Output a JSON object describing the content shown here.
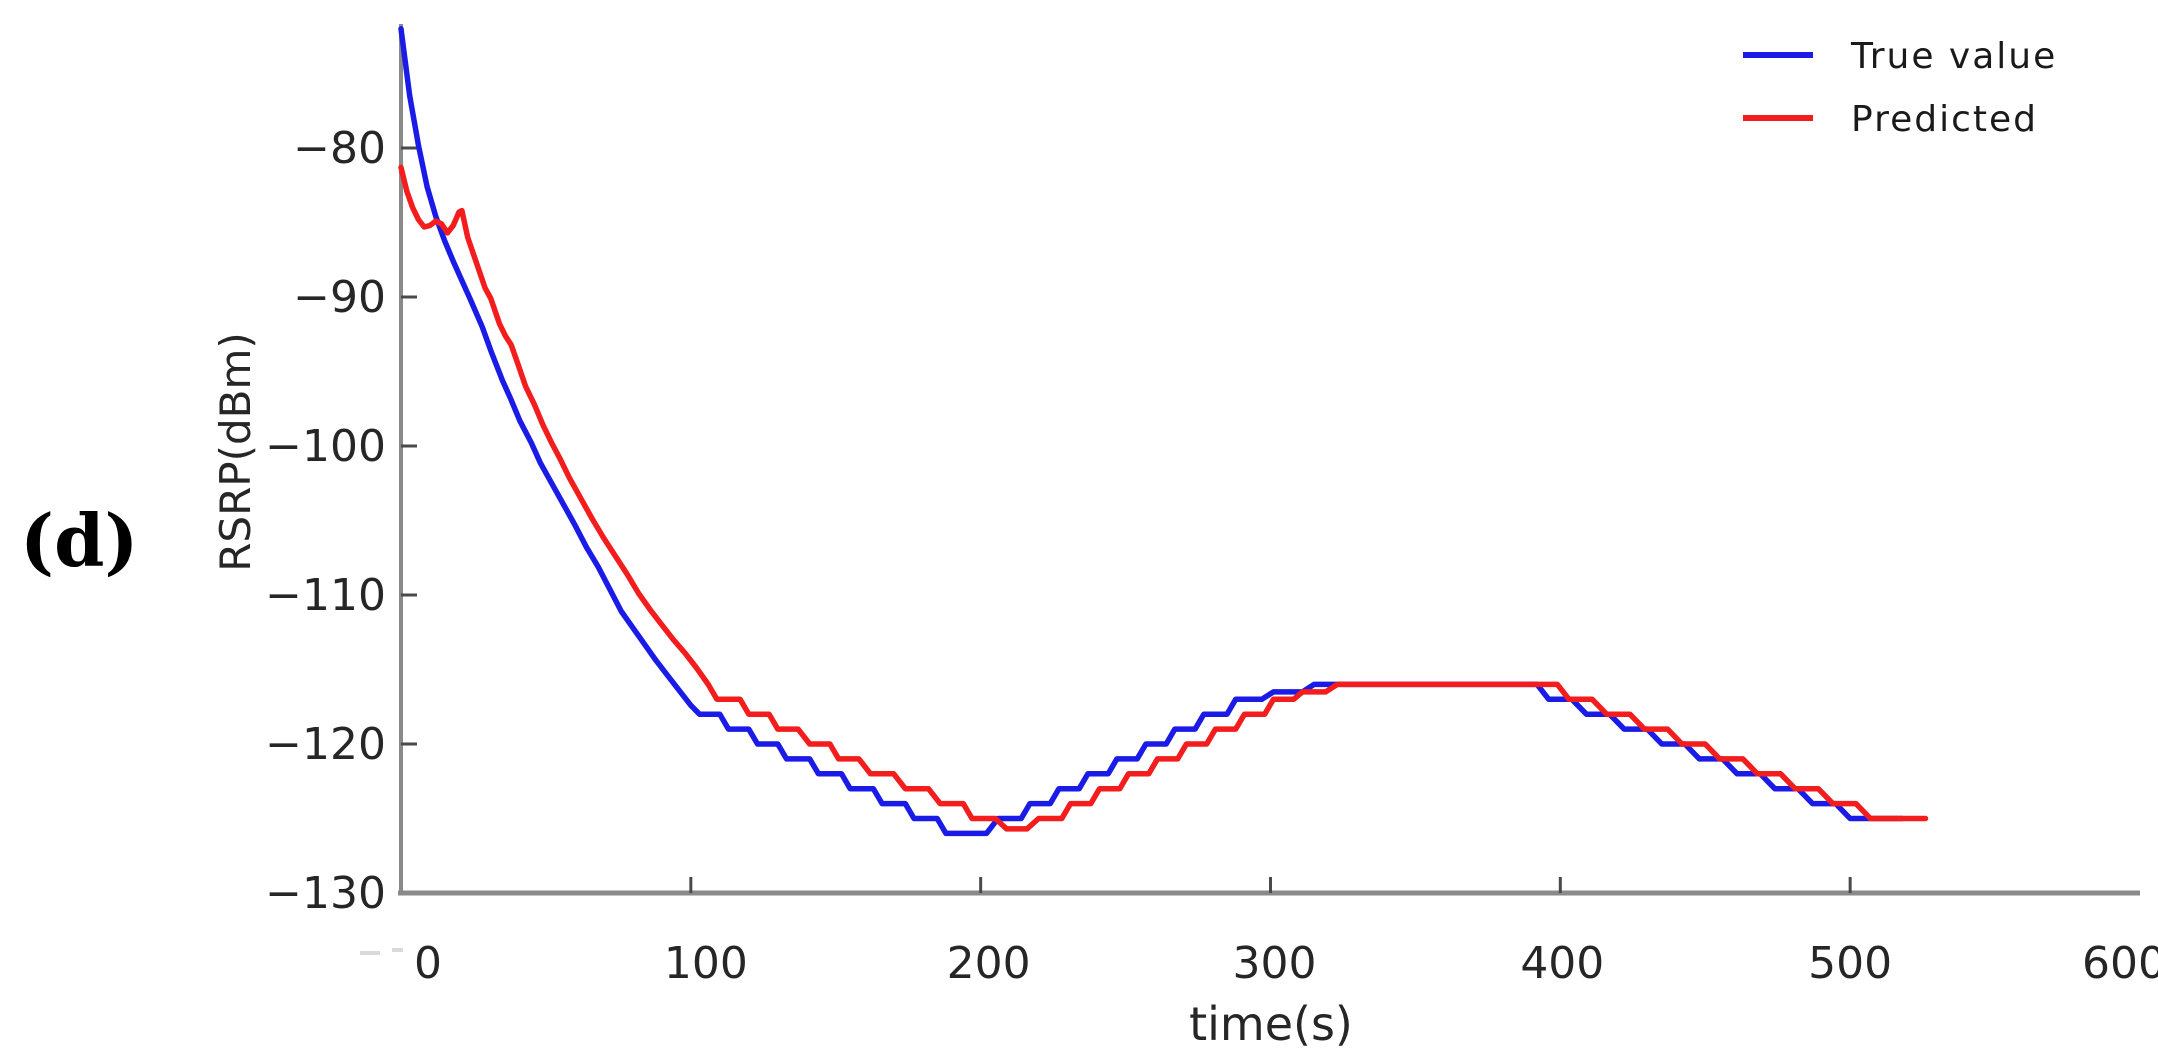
{
  "figure_label": "(d)",
  "colors": {
    "background": "#ffffff",
    "spine": "#8a8a8a",
    "tick_mark": "#4a4a4a",
    "tick_text": "#262626",
    "true_value_blue": "#1b1be8",
    "predicted_red": "#f31d1d",
    "artifact_gray": "#d9d9d9"
  },
  "chart_data": {
    "type": "line",
    "title": "",
    "xlabel": "time(s)",
    "ylabel": "RSRP(dBm)",
    "xlim": [
      0,
      600
    ],
    "ylim": [
      -130,
      -71.6
    ],
    "xticks": [
      0,
      100,
      200,
      300,
      400,
      500,
      600
    ],
    "yticks": [
      -80,
      -90,
      -100,
      -110,
      -120,
      -130
    ],
    "grid": false,
    "legend_position": "upper right",
    "legend": [
      "True value",
      "Predicted"
    ],
    "series": [
      {
        "name": "True value",
        "color": "#1b1be8",
        "points": [
          [
            0,
            -72
          ],
          [
            3,
            -76.5
          ],
          [
            6,
            -79.8
          ],
          [
            9,
            -82.6
          ],
          [
            12,
            -84.6
          ],
          [
            15,
            -86.2
          ],
          [
            18,
            -87.6
          ],
          [
            21,
            -88.9
          ],
          [
            24,
            -90.2
          ],
          [
            28,
            -92
          ],
          [
            31,
            -93.6
          ],
          [
            35,
            -95.6
          ],
          [
            38,
            -96.9
          ],
          [
            41,
            -98.3
          ],
          [
            45,
            -99.8
          ],
          [
            48,
            -101.1
          ],
          [
            52,
            -102.5
          ],
          [
            56,
            -103.9
          ],
          [
            60,
            -105.3
          ],
          [
            64,
            -106.8
          ],
          [
            68,
            -108.1
          ],
          [
            72,
            -109.6
          ],
          [
            76,
            -111.1
          ],
          [
            80,
            -112.2
          ],
          [
            84,
            -113.3
          ],
          [
            88,
            -114.4
          ],
          [
            92,
            -115.4
          ],
          [
            96,
            -116.4
          ],
          [
            100,
            -117.4
          ],
          [
            103,
            -118
          ],
          [
            110,
            -118
          ],
          [
            113,
            -119
          ],
          [
            120,
            -119
          ],
          [
            123,
            -120
          ],
          [
            130,
            -120
          ],
          [
            133,
            -121
          ],
          [
            141,
            -121
          ],
          [
            144,
            -122
          ],
          [
            152,
            -122
          ],
          [
            155,
            -123
          ],
          [
            163,
            -123
          ],
          [
            166,
            -124
          ],
          [
            174,
            -124
          ],
          [
            177,
            -125
          ],
          [
            185,
            -125
          ],
          [
            188,
            -126
          ],
          [
            202,
            -126
          ],
          [
            206,
            -125
          ],
          [
            214,
            -125
          ],
          [
            217,
            -124
          ],
          [
            224,
            -124
          ],
          [
            227,
            -123
          ],
          [
            234,
            -123
          ],
          [
            237,
            -122
          ],
          [
            244,
            -122
          ],
          [
            247,
            -121
          ],
          [
            254,
            -121
          ],
          [
            257,
            -120
          ],
          [
            264,
            -120
          ],
          [
            267,
            -119
          ],
          [
            274,
            -119
          ],
          [
            277,
            -118
          ],
          [
            285,
            -118
          ],
          [
            288,
            -117
          ],
          [
            297,
            -117
          ],
          [
            301,
            -116.5
          ],
          [
            311,
            -116.5
          ],
          [
            315,
            -116
          ],
          [
            392,
            -116
          ],
          [
            396,
            -117
          ],
          [
            404,
            -117
          ],
          [
            409,
            -118
          ],
          [
            417,
            -118
          ],
          [
            422,
            -119
          ],
          [
            430,
            -119
          ],
          [
            435,
            -120
          ],
          [
            443,
            -120
          ],
          [
            448,
            -121
          ],
          [
            456,
            -121
          ],
          [
            461,
            -122
          ],
          [
            469,
            -122
          ],
          [
            474,
            -123
          ],
          [
            482,
            -123
          ],
          [
            487,
            -124
          ],
          [
            495,
            -124
          ],
          [
            500,
            -125
          ],
          [
            518,
            -125
          ]
        ]
      },
      {
        "name": "Predicted",
        "color": "#f31d1d",
        "points": [
          [
            0,
            -81.3
          ],
          [
            2,
            -82.9
          ],
          [
            4,
            -84
          ],
          [
            6,
            -84.8
          ],
          [
            8,
            -85.3
          ],
          [
            10,
            -85.2
          ],
          [
            12,
            -84.9
          ],
          [
            14,
            -85.1
          ],
          [
            16,
            -85.7
          ],
          [
            18,
            -85.2
          ],
          [
            20,
            -84.3
          ],
          [
            21,
            -84.2
          ],
          [
            23,
            -86
          ],
          [
            26,
            -87.7
          ],
          [
            29,
            -89.4
          ],
          [
            31,
            -90.1
          ],
          [
            34,
            -91.8
          ],
          [
            36,
            -92.6
          ],
          [
            38,
            -93.2
          ],
          [
            40,
            -94.3
          ],
          [
            43,
            -96
          ],
          [
            46,
            -97.2
          ],
          [
            49,
            -98.6
          ],
          [
            52,
            -99.8
          ],
          [
            55,
            -100.9
          ],
          [
            58,
            -102.1
          ],
          [
            62,
            -103.5
          ],
          [
            66,
            -104.9
          ],
          [
            70,
            -106.2
          ],
          [
            74,
            -107.4
          ],
          [
            78,
            -108.6
          ],
          [
            82,
            -109.9
          ],
          [
            86,
            -111
          ],
          [
            90,
            -112
          ],
          [
            94,
            -113
          ],
          [
            98,
            -113.9
          ],
          [
            102,
            -114.9
          ],
          [
            106,
            -116
          ],
          [
            109,
            -117
          ],
          [
            117,
            -117
          ],
          [
            120,
            -118
          ],
          [
            127,
            -118
          ],
          [
            130,
            -119
          ],
          [
            137,
            -119
          ],
          [
            141,
            -120
          ],
          [
            148,
            -120
          ],
          [
            151,
            -121
          ],
          [
            158,
            -121
          ],
          [
            162,
            -122
          ],
          [
            170,
            -122
          ],
          [
            174,
            -123
          ],
          [
            182,
            -123
          ],
          [
            186,
            -124
          ],
          [
            194,
            -124
          ],
          [
            197,
            -125
          ],
          [
            205,
            -125
          ],
          [
            209,
            -125.7
          ],
          [
            216,
            -125.7
          ],
          [
            220,
            -125
          ],
          [
            228,
            -125
          ],
          [
            231,
            -124
          ],
          [
            238,
            -124
          ],
          [
            241,
            -123
          ],
          [
            248,
            -123
          ],
          [
            251,
            -122
          ],
          [
            258,
            -122
          ],
          [
            261,
            -121
          ],
          [
            268,
            -121
          ],
          [
            271,
            -120
          ],
          [
            278,
            -120
          ],
          [
            281,
            -119
          ],
          [
            288,
            -119
          ],
          [
            291,
            -118
          ],
          [
            298,
            -118
          ],
          [
            301,
            -117
          ],
          [
            308,
            -117
          ],
          [
            311,
            -116.5
          ],
          [
            319,
            -116.5
          ],
          [
            323,
            -116
          ],
          [
            399,
            -116
          ],
          [
            403,
            -117
          ],
          [
            411,
            -117
          ],
          [
            416,
            -118
          ],
          [
            424,
            -118
          ],
          [
            429,
            -119
          ],
          [
            437,
            -119
          ],
          [
            442,
            -120
          ],
          [
            450,
            -120
          ],
          [
            455,
            -121
          ],
          [
            463,
            -121
          ],
          [
            468,
            -122
          ],
          [
            476,
            -122
          ],
          [
            481,
            -123
          ],
          [
            489,
            -123
          ],
          [
            494,
            -124
          ],
          [
            502,
            -124
          ],
          [
            507,
            -125
          ],
          [
            526,
            -125
          ]
        ]
      }
    ]
  }
}
